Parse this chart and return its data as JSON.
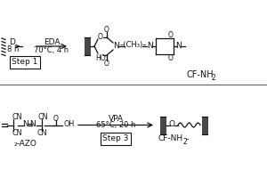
{
  "background_color": "#ffffff",
  "text_color": "#111111",
  "line_color": "#111111",
  "top": {
    "step_label": "Step 1",
    "reagent": "EDA",
    "condition": "70°C, 4 h",
    "product_name": "CF-NH",
    "product_sub": "2"
  },
  "bottom": {
    "step_label": "Step 3",
    "reagent": "VPA",
    "condition": "65°C, 20 h",
    "reactant_label": "₂-AZO",
    "product_name": "CF-NH",
    "product_sub": "2",
    "product_suffix": "-"
  }
}
